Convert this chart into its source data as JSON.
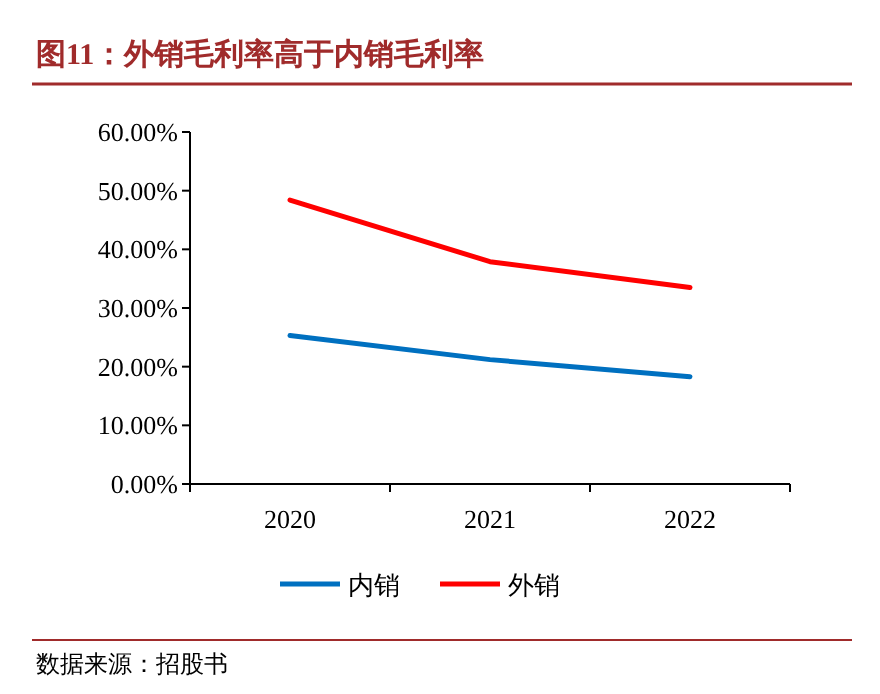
{
  "chart_data": {
    "type": "line",
    "title": "图11：外销毛利率高于内销毛利率",
    "annotations": [
      "数据来源：招股书"
    ],
    "categories": [
      "2020",
      "2021",
      "2022"
    ],
    "series": [
      {
        "name": "内销",
        "color": "#0070c0",
        "values": [
          25.3,
          21.2,
          18.3
        ]
      },
      {
        "name": "外销",
        "color": "#ff0000",
        "values": [
          48.4,
          37.9,
          33.5
        ]
      }
    ],
    "ylim": [
      0,
      60
    ],
    "yticks": [
      {
        "value": 0,
        "label": "0.00%"
      },
      {
        "value": 10,
        "label": "10.00%"
      },
      {
        "value": 20,
        "label": "20.00%"
      },
      {
        "value": 30,
        "label": "30.00%"
      },
      {
        "value": 40,
        "label": "40.00%"
      },
      {
        "value": 50,
        "label": "50.00%"
      },
      {
        "value": 60,
        "label": "60.00%"
      }
    ],
    "legend": "bottom"
  }
}
